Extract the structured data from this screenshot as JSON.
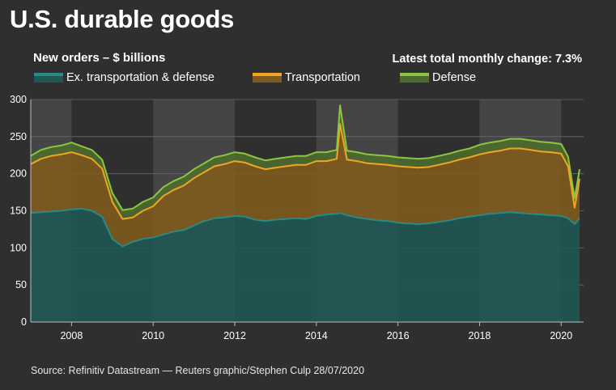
{
  "title": "U.S. durable goods",
  "subtitle": "New orders – $ billions",
  "latest_change": "Latest total monthly change: 7.3%",
  "source": "Source: Refinitiv Datastream — Reuters graphic/Stephen Culp 28/07/2020",
  "colors": {
    "background": "#2f2f2f",
    "shade": "#454545",
    "ex": "#1f5854",
    "ex_line": "#2a8a82",
    "transport": "#7f5a1e",
    "transport_line": "#f0a622",
    "defense": "#4e6a2e",
    "defense_line": "#8cc63f",
    "axis_text": "#ffffff",
    "grid": "#6a6a6a"
  },
  "legend": [
    {
      "label": "Ex. transportation & defense",
      "color": "#2a8a82"
    },
    {
      "label": "Transportation",
      "color": "#f0a622"
    },
    {
      "label": "Defense",
      "color": "#8cc63f"
    }
  ],
  "chart_data": {
    "type": "area",
    "stacked": true,
    "x_range": [
      2007.0,
      2020.55
    ],
    "ylim": [
      0,
      300
    ],
    "yticks": [
      0,
      50,
      100,
      150,
      200,
      250,
      300
    ],
    "xticks": [
      2008,
      2010,
      2012,
      2014,
      2016,
      2018,
      2020
    ],
    "xtick_labels": [
      "2008",
      "2010",
      "2012",
      "2014",
      "2016",
      "2018",
      "2020"
    ],
    "shaded_periods": [
      [
        2007.0,
        2008.0
      ],
      [
        2010.0,
        2012.0
      ],
      [
        2014.0,
        2016.0
      ],
      [
        2018.0,
        2020.0
      ]
    ],
    "x": [
      2007.0,
      2007.25,
      2007.5,
      2007.75,
      2008.0,
      2008.25,
      2008.5,
      2008.75,
      2009.0,
      2009.25,
      2009.5,
      2009.75,
      2010.0,
      2010.25,
      2010.5,
      2010.75,
      2011.0,
      2011.25,
      2011.5,
      2011.75,
      2012.0,
      2012.25,
      2012.5,
      2012.75,
      2013.0,
      2013.25,
      2013.5,
      2013.75,
      2014.0,
      2014.25,
      2014.5,
      2014.58,
      2014.75,
      2015.0,
      2015.25,
      2015.5,
      2015.75,
      2016.0,
      2016.25,
      2016.5,
      2016.75,
      2017.0,
      2017.25,
      2017.5,
      2017.75,
      2018.0,
      2018.25,
      2018.5,
      2018.75,
      2019.0,
      2019.25,
      2019.5,
      2019.75,
      2020.0,
      2020.17,
      2020.33,
      2020.45
    ],
    "series": [
      {
        "name": "Ex. transportation & defense",
        "values": [
          147,
          148,
          149,
          150,
          152,
          153,
          150,
          142,
          112,
          102,
          108,
          112,
          114,
          118,
          122,
          124,
          130,
          136,
          140,
          141,
          143,
          142,
          138,
          136,
          138,
          139,
          140,
          139,
          143,
          145,
          146,
          147,
          144,
          141,
          139,
          137,
          136,
          134,
          133,
          132,
          133,
          135,
          137,
          140,
          142,
          144,
          146,
          147,
          148,
          147,
          146,
          145,
          144,
          143,
          140,
          132,
          140
        ]
      },
      {
        "name": "Transportation",
        "values": [
          66,
          72,
          75,
          76,
          77,
          72,
          70,
          65,
          50,
          37,
          33,
          38,
          42,
          52,
          56,
          60,
          64,
          66,
          70,
          72,
          74,
          73,
          72,
          70,
          70,
          71,
          72,
          73,
          74,
          72,
          74,
          120,
          75,
          76,
          75,
          76,
          76,
          76,
          76,
          76,
          76,
          77,
          78,
          79,
          80,
          82,
          83,
          84,
          86,
          87,
          86,
          85,
          85,
          84,
          70,
          22,
          53
        ]
      },
      {
        "name": "Defense",
        "values": [
          11,
          12,
          12,
          12,
          13,
          12,
          12,
          12,
          12,
          12,
          12,
          12,
          12,
          12,
          12,
          12,
          12,
          12,
          12,
          12,
          12,
          12,
          12,
          12,
          12,
          12,
          12,
          12,
          12,
          12,
          12,
          25,
          12,
          12,
          12,
          12,
          12,
          12,
          12,
          12,
          12,
          12,
          12,
          12,
          12,
          13,
          13,
          13,
          13,
          13,
          13,
          13,
          13,
          13,
          13,
          13,
          13
        ]
      }
    ]
  }
}
